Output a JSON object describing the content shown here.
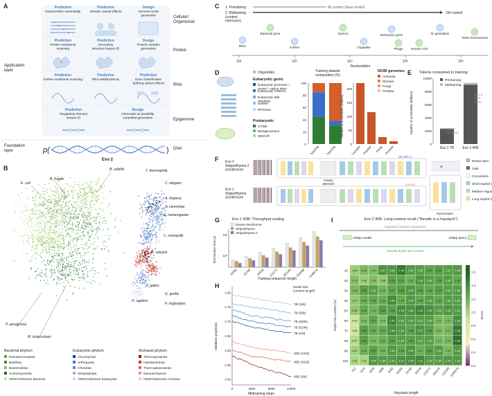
{
  "panel_labels": [
    "A",
    "B",
    "C",
    "D",
    "E",
    "F",
    "G",
    "H",
    "I"
  ],
  "panelA": {
    "levels": [
      "Cellular/\nOrganismal",
      "Protein",
      "RNA",
      "Epigenome",
      "DNA"
    ],
    "application_layer": "Application\nlayer",
    "foundation_layer": "Foundation\nlayer",
    "evo2": "Evo 2",
    "p_label": "p(",
    "p_close": ")",
    "rows": [
      [
        {
          "kind": "Prediction",
          "text": "Gene/ncRNA essentiality"
        },
        {
          "kind": "Prediction",
          "text": "Genetic variant effects"
        },
        {
          "kind": "Design",
          "text": "Genome-scale\ngeneration"
        }
      ],
      [
        {
          "kind": "Prediction",
          "text": "Protein mutational\nscanning"
        },
        {
          "kind": "Prediction",
          "text": "Secondary\nstructure feature ID"
        },
        {
          "kind": "Design",
          "text": "Protein complex\ngeneration"
        }
      ],
      [
        {
          "kind": "Prediction",
          "text": "ncRNA mutational scanning"
        },
        {
          "kind": "Prediction",
          "text": "RNA stability/decay"
        },
        {
          "kind": "Prediction",
          "text": "Exon classification\nSplicing variant effects"
        }
      ],
      [
        {
          "kind": "Prediction",
          "text": "Regulatory element\nfeature ID"
        },
        {
          "kind": "Design",
          "text": "Chromatin accessibility\ncontrolled generation"
        }
      ]
    ]
  },
  "panelB": {
    "species": [
      "B. fragilis",
      "B. subtilis",
      "E. coli",
      "T. thermophila",
      "C. elegans",
      "A. thaliana",
      "S. cerevisiae",
      "D. melanogaster",
      "C. reinhardtii",
      "H. volcanii",
      "G. gallus",
      "G. gorilla",
      "H. sapiens",
      "P. troglodytes",
      "P. aeruginosa",
      "M. tuberculosis"
    ],
    "legend": {
      "bacterial_title": "Bacterial phylum",
      "bacterial": [
        {
          "name": "Pseudomonadota",
          "color": "#6b9a3a"
        },
        {
          "name": "Bacillota",
          "color": "#3e8e3e"
        },
        {
          "name": "Bacteroidota",
          "color": "#8bc34a"
        },
        {
          "name": "Actinomycetota",
          "color": "#1e6b2e"
        },
        {
          "name": "Other/Unknown Bacteria",
          "color": "#c5e1a5"
        }
      ],
      "eukaryotic_title": "Eukaryotic phylum",
      "eukaryotic": [
        {
          "name": "Ascomycota",
          "color": "#1f3f8f"
        },
        {
          "name": "Arthropoda",
          "color": "#3b6ec9"
        },
        {
          "name": "Chordata",
          "color": "#5a86d6"
        },
        {
          "name": "Streptophyta",
          "color": "#8fb0e6"
        },
        {
          "name": "Other/Unknown Eukaryota",
          "color": "#c8d7f2"
        }
      ],
      "archaeal_title": "Archaeal phylum",
      "archaeal": [
        {
          "name": "Thermoproteota",
          "color": "#8b1a1a"
        },
        {
          "name": "Halobacteriota",
          "color": "#c0392b"
        },
        {
          "name": "Thermoplasmatota",
          "color": "#e06060"
        },
        {
          "name": "Nanoarchaeota",
          "color": "#f09090"
        },
        {
          "name": "Other/Unknown Archaea",
          "color": "#f7c6c6"
        }
      ]
    }
  },
  "panelC": {
    "stage1": "1. Pretraining",
    "stage2": "2. Midtraining\n(context\nextension)",
    "ctx8k": "8k context (base model)",
    "ctx1m": "1M context",
    "ticks": [
      "10²",
      "10³",
      "10⁴",
      "10⁵",
      "10⁶"
    ],
    "xlabel": "Nucleotides",
    "items": [
      "tRNA",
      "Bacterial gene",
      "ncRNA",
      "Operon",
      "Organelle",
      "Phage",
      "Eukaryotic gene",
      "Human TAD",
      "M. genitalium",
      "Yeast chromosome"
    ]
  },
  "panelD": {
    "organelles": "Organelles",
    "eukaryotic_title": "Eukaryotic genic",
    "eukaryotic_items": [
      "Eukaryotic promoter +\nexons + splice sites",
      "Eukaryotic mRNAs",
      "Eukaryotic 6kb\nwindows",
      "ncRNA",
      "EPDnew"
    ],
    "prokaryotic_title": "Prokaryotic",
    "prokaryotic_items": [
      "GTDB",
      "Metagenomics",
      "IMG/VR"
    ],
    "comp_title": "Training dataset\ncomposition (%)",
    "comp_ticks": [
      "0",
      "20",
      "40",
      "60",
      "80",
      "100"
    ],
    "comp_bars": [
      "Pretraining",
      "Midtraining"
    ],
    "ncbi_title": "NCBI genomes",
    "ncbi_items": [
      "Animalia",
      "Plantae",
      "Fungi",
      "Protista"
    ],
    "ncbi_ylabel": "Number of nucleotides (billions)",
    "ncbi_ticks": [
      "0",
      "50",
      "100",
      "150",
      "200"
    ]
  },
  "panelE": {
    "title": "Tokens consumed in training",
    "legend": [
      "Pretraining",
      "Midtraining"
    ],
    "ylabel": "Number of nucleotides (billions)",
    "ticks": [
      "0",
      "2000",
      "4000",
      "6000",
      "8000",
      "10000"
    ],
    "bars": [
      "Evo 2 7B",
      "Evo 2 40B"
    ],
    "note1": "Evo 2\n7B base",
    "note2": "Evo 2\n40B\nbase"
  },
  "panelF": {
    "row1": "Evo 2\nStripedHyena 2\narchitecture",
    "row2": "Evo 1\nStripedHyena\narchitecture",
    "rotary": "Rotary\nattention",
    "se_mr_li": "SE-MR-LI",
    "li_li_li": "LI-LI-LI",
    "hyena_layer": "Hyena layer",
    "or": "or",
    "legend": [
      "Dense layer",
      "Gate",
      "Convolution",
      "Short explicit (SE)",
      "Medium regularized (MR)",
      "Long implicit (LI)"
    ]
  },
  "panelG": {
    "title": "Evo 2 40B: Throughput scaling",
    "legend": [
      "Dense transformer",
      "StripedHyena",
      "StripedHyena 2"
    ],
    "ylabel": "Total iteration time (s)",
    "xlabel": "Training sequence length",
    "xticks": [
      "16384",
      "32768",
      "65536",
      "131072",
      "262144",
      "524288",
      "1048576"
    ],
    "yticks": [
      "10¹",
      "10²"
    ]
  },
  "panelH": {
    "ylabel": "Validation perplexity",
    "xlabel": "Midtraining steps",
    "xticks": [
      "0",
      "4000",
      "8000",
      "12000"
    ],
    "yticks": [
      "2.50",
      "2.55",
      "2.60",
      "2.65",
      "2.70",
      "2.75",
      "2.80"
    ],
    "legend_title": "Model size\n(context length)",
    "series": [
      "7B (32k)",
      "7B (65k)",
      "7B (262k)",
      "7B (524k)",
      "7B (1M)",
      "40B (131k)",
      "40B (262k)",
      "40B (1M)"
    ]
  },
  "panelI": {
    "title": "Evo 2 40B: Long-context recall (“Needle in a haystack”)",
    "haystack": "Haystack (random sequence)",
    "needle100": "100bp needle",
    "query100": "100bp query",
    "depth_label": "Needle depth into context",
    "ylabel": "Depth into context (%)",
    "xlabel": "Haystack length",
    "colorbar_label": "Score",
    "colorbar_ticks": [
      "0.2",
      "0.4",
      "0.6",
      "0.8",
      "1.0",
      "1.2",
      "1.4",
      "1.6"
    ],
    "rows": [
      "10",
      "20",
      "30",
      "40",
      "50",
      "60",
      "70",
      "80",
      "90",
      "100"
    ],
    "cols": [
      "512",
      "1024",
      "2048",
      "4096",
      "8192",
      "16384",
      "32768",
      "65536",
      "131072",
      "262144",
      "524288",
      "1048576"
    ],
    "values": [
      [
        "1.06",
        "1.16",
        "1.14",
        "1.37",
        "1.34",
        "1.49",
        "1.33",
        "1.32",
        "1.28",
        "1.30",
        "1.32",
        "1.34"
      ],
      [
        "1.13",
        "1.06",
        "1.14",
        "1.08",
        "1.28",
        "1.27",
        "1.21",
        "1.36",
        "1.32",
        "1.28",
        "1.32",
        "1.26"
      ],
      [
        "1.16",
        "1.30",
        "1.31",
        "1.18",
        "1.27",
        "1.30",
        "1.34",
        "1.28",
        "1.26",
        "1.30",
        "1.32",
        "1.32"
      ],
      [
        "1.07",
        "1.22",
        "1.25",
        "1.23",
        "1.40",
        "1.24",
        "1.34",
        "1.26",
        "1.32",
        "1.26",
        "1.32",
        "1.31"
      ],
      [
        "1.08",
        "1.25",
        "1.19",
        "1.30",
        "1.28",
        "1.39",
        "1.36",
        "1.43",
        "1.39",
        "1.32",
        "1.35",
        "1.34"
      ],
      [
        "0.90",
        "1.15",
        "1.27",
        "1.14",
        "1.44",
        "1.32",
        "1.32",
        "1.31",
        "1.32",
        "1.17",
        "1.17",
        "1.38"
      ],
      [
        "0.86",
        "1.30",
        "1.24",
        "1.24",
        "1.38",
        "1.34",
        "1.28",
        "1.37",
        "1.30",
        "1.17",
        "1.17",
        "1.48"
      ],
      [
        "0.97",
        "1.30",
        "1.17",
        "1.22",
        "1.29",
        "1.31",
        "1.30",
        "1.31",
        "1.32",
        "1.17",
        "1.17",
        "1.53"
      ],
      [
        "1.02",
        "1.20",
        "1.29",
        "1.19",
        "1.33",
        "1.26",
        "1.35",
        "1.21",
        "1.30",
        "1.32",
        "1.17",
        "1.33"
      ],
      [
        "1.00",
        "1.01",
        "1.34",
        "1.32",
        "1.33",
        "1.37",
        "1.38",
        "1.41",
        "1.32",
        "1.32",
        "1.34",
        "1.35"
      ]
    ]
  },
  "chart_data": [
    {
      "type": "bar",
      "title": "Training dataset composition (%)",
      "categories": [
        "Pretraining",
        "Midtraining"
      ],
      "ylim": [
        0,
        100
      ],
      "series": [
        {
          "name": "Prokaryotic",
          "values": [
            45,
            30
          ]
        },
        {
          "name": "Eukaryotic genic",
          "values": [
            40,
            8
          ]
        },
        {
          "name": "Other",
          "values": [
            15,
            62
          ]
        }
      ]
    },
    {
      "type": "bar",
      "title": "NCBI genomes",
      "categories": [
        "Animalia",
        "Plantae",
        "Fungi",
        "Protista"
      ],
      "values": [
        220,
        115,
        25,
        10
      ],
      "ylim": [
        0,
        220
      ],
      "ylabel": "Number of nucleotides (billions)"
    },
    {
      "type": "bar",
      "title": "Tokens consumed in training",
      "categories": [
        "Evo 2 7B",
        "Evo 2 40B"
      ],
      "ylim": [
        0,
        10000
      ],
      "series": [
        {
          "name": "Pretraining",
          "values": [
            2300,
            9000
          ]
        },
        {
          "name": "Midtraining",
          "values": [
            100,
            300
          ]
        }
      ]
    },
    {
      "type": "bar",
      "title": "Evo 2 40B: Throughput scaling",
      "categories": [
        "16384",
        "32768",
        "65536",
        "131072",
        "262144",
        "524288",
        "1048576"
      ],
      "ylabel": "Total iteration time (s)",
      "series": [
        {
          "name": "Dense transformer",
          "values": [
            12,
            18,
            28,
            45,
            80,
            150,
            300
          ]
        },
        {
          "name": "StripedHyena",
          "values": [
            10,
            14,
            20,
            30,
            48,
            90,
            170
          ]
        },
        {
          "name": "StripedHyena 2",
          "values": [
            8,
            11,
            15,
            22,
            35,
            60,
            110
          ]
        }
      ]
    },
    {
      "type": "line",
      "title": "Validation perplexity",
      "xlabel": "Midtraining steps",
      "ylabel": "Validation perplexity",
      "ylim": [
        2.48,
        2.82
      ],
      "x": [
        0,
        4000,
        8000,
        12000
      ],
      "series": [
        {
          "name": "7B (32k)",
          "values": [
            2.79,
            2.78,
            2.77,
            2.76
          ]
        },
        {
          "name": "7B (65k)",
          "values": [
            2.76,
            2.75,
            2.74,
            2.73
          ]
        },
        {
          "name": "7B (262k)",
          "values": [
            2.74,
            2.72,
            2.71,
            2.7
          ]
        },
        {
          "name": "7B (524k)",
          "values": [
            2.72,
            2.7,
            2.69,
            2.68
          ]
        },
        {
          "name": "7B (1M)",
          "values": [
            2.7,
            2.68,
            2.67,
            2.66
          ]
        },
        {
          "name": "40B (131k)",
          "values": [
            2.63,
            2.61,
            2.6,
            2.59
          ]
        },
        {
          "name": "40B (262k)",
          "values": [
            2.6,
            2.58,
            2.57,
            2.56
          ]
        },
        {
          "name": "40B (1M)",
          "values": [
            2.58,
            2.55,
            2.53,
            2.51
          ]
        }
      ]
    },
    {
      "type": "heatmap",
      "title": "Long-context recall",
      "xlabel": "Haystack length",
      "ylabel": "Depth into context (%)"
    }
  ]
}
